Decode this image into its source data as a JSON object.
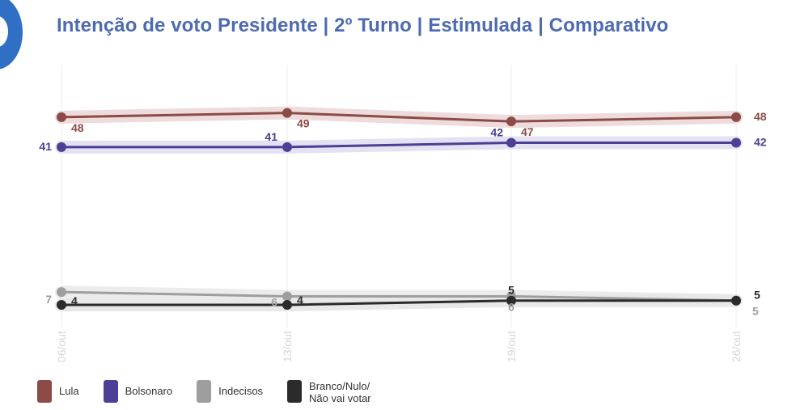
{
  "title": "Intenção de voto Presidente | 2º Turno | Estimulada | Comparativo",
  "logo": {
    "icon": "brand-logo-icon",
    "color": "#2f6fc4"
  },
  "chart_data": {
    "type": "line",
    "title": "Intenção de voto Presidente | 2º Turno | Estimulada | Comparativo",
    "xlabel": "",
    "ylabel": "",
    "x": [
      "06/out",
      "13/out",
      "19/out",
      "26/out"
    ],
    "ylim": [
      0,
      55
    ],
    "grid": "vertical",
    "legend_position": "bottom-left",
    "series": [
      {
        "name": "Lula",
        "color": "#8c4b46",
        "band": "#eedcdc",
        "values": [
          48,
          49,
          47,
          48
        ],
        "labels": [
          "48",
          "49",
          "47",
          "48"
        ]
      },
      {
        "name": "Bolsonaro",
        "color": "#4d3f96",
        "band": "#e4e2f2",
        "values": [
          41,
          41,
          42,
          42
        ],
        "labels": [
          "41",
          "41",
          "42",
          "42"
        ]
      },
      {
        "name": "Indecisos",
        "color": "#9e9e9e",
        "band": "#ececec",
        "values": [
          7,
          6,
          6,
          5
        ],
        "labels": [
          "7",
          "6",
          "6",
          "5"
        ]
      },
      {
        "name": "Branco/Nulo/\nNão vai votar",
        "color": "#2b2b2b",
        "band": "#e8e8e8",
        "values": [
          4,
          4,
          5,
          5
        ],
        "labels": [
          "4",
          "4",
          "5",
          "5"
        ]
      }
    ]
  }
}
